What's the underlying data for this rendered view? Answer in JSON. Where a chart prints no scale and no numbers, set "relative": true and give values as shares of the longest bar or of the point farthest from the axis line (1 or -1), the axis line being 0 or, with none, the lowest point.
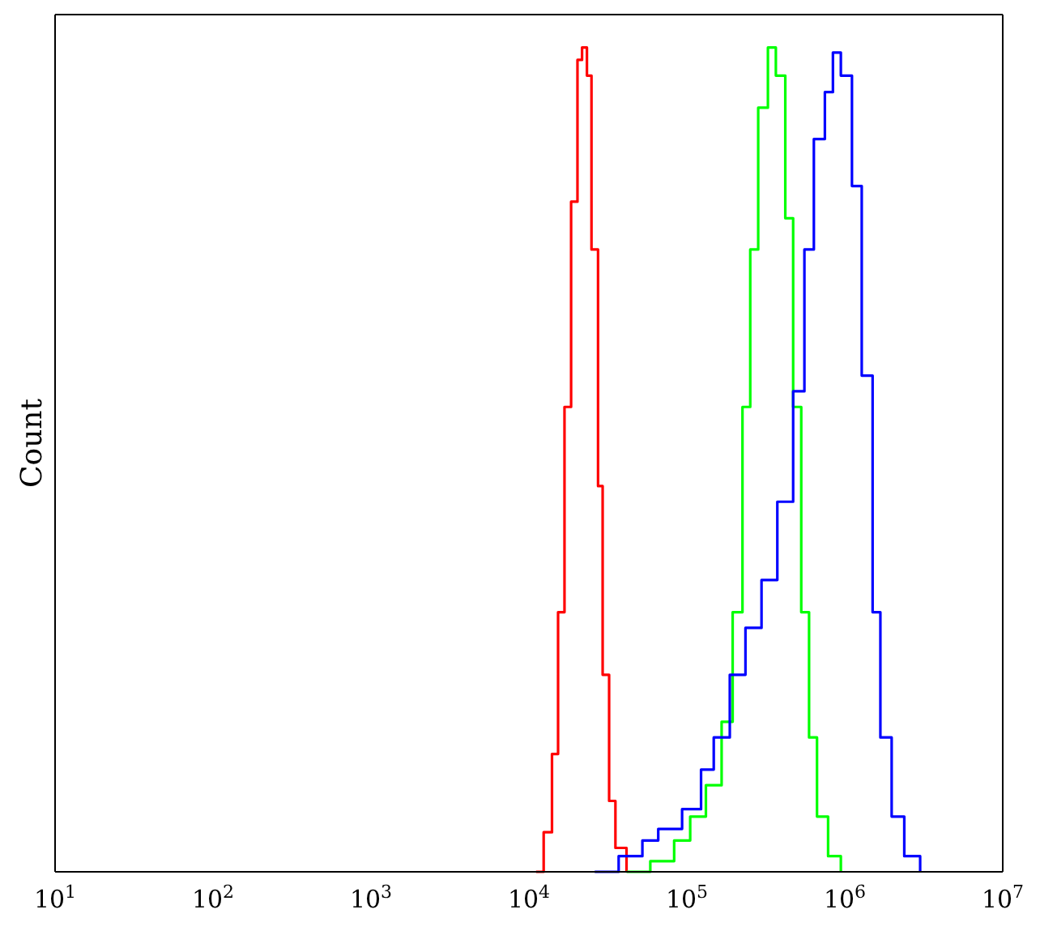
{
  "chart_data": {
    "type": "step",
    "ylabel": "Count",
    "relative": true,
    "log": "x",
    "xlim": [
      10,
      10000000
    ],
    "xticks": [
      {
        "value": 10,
        "label": "10$^{1}$"
      },
      {
        "value": 100,
        "label": "10$^{2}$"
      },
      {
        "value": 1000,
        "label": "10$^{3}$"
      },
      {
        "value": 10000,
        "label": "10$^{4}$"
      },
      {
        "value": 100000,
        "label": "10$^{5}$"
      },
      {
        "value": 1000000,
        "label": "10$^{6}$"
      },
      {
        "value": 10000000,
        "label": "10$^{7}$"
      }
    ],
    "legend": false,
    "series": [
      {
        "color": "#ff0000",
        "x": [
          11100,
          12400,
          14000,
          15300,
          16800,
          18500,
          20300,
          21700,
          23300,
          24900,
          27400,
          29300,
          32200,
          35300,
          41500
        ],
        "values": [
          0,
          0.048,
          0.143,
          0.315,
          0.564,
          0.813,
          0.985,
          1,
          0.966,
          0.755,
          0.468,
          0.239,
          0.086,
          0.029,
          0
        ]
      },
      {
        "color": "#00ff00",
        "x": [
          41500,
          58700,
          83100,
          105000,
          132000,
          166000,
          195000,
          225000,
          252000,
          283000,
          326000,
          366000,
          420000,
          471000,
          530000,
          594000,
          667000,
          784000,
          944000
        ],
        "values": [
          0,
          0.013,
          0.038,
          0.067,
          0.105,
          0.182,
          0.315,
          0.564,
          0.755,
          0.927,
          1,
          0.966,
          0.793,
          0.564,
          0.315,
          0.163,
          0.067,
          0.019,
          0
        ]
      },
      {
        "color": "#0000ff",
        "x": [
          26100,
          37000,
          52300,
          65900,
          93300,
          123000,
          148000,
          187000,
          235000,
          297000,
          374000,
          471000,
          555000,
          637000,
          748000,
          841000,
          944000,
          1110000,
          1280000,
          1500000,
          1680000,
          1980000,
          2380000,
          3000000
        ],
        "values": [
          0,
          0.019,
          0.038,
          0.052,
          0.076,
          0.124,
          0.163,
          0.239,
          0.296,
          0.354,
          0.449,
          0.583,
          0.755,
          0.889,
          0.946,
          0.994,
          0.966,
          0.832,
          0.602,
          0.315,
          0.163,
          0.067,
          0.019,
          0
        ]
      }
    ]
  }
}
